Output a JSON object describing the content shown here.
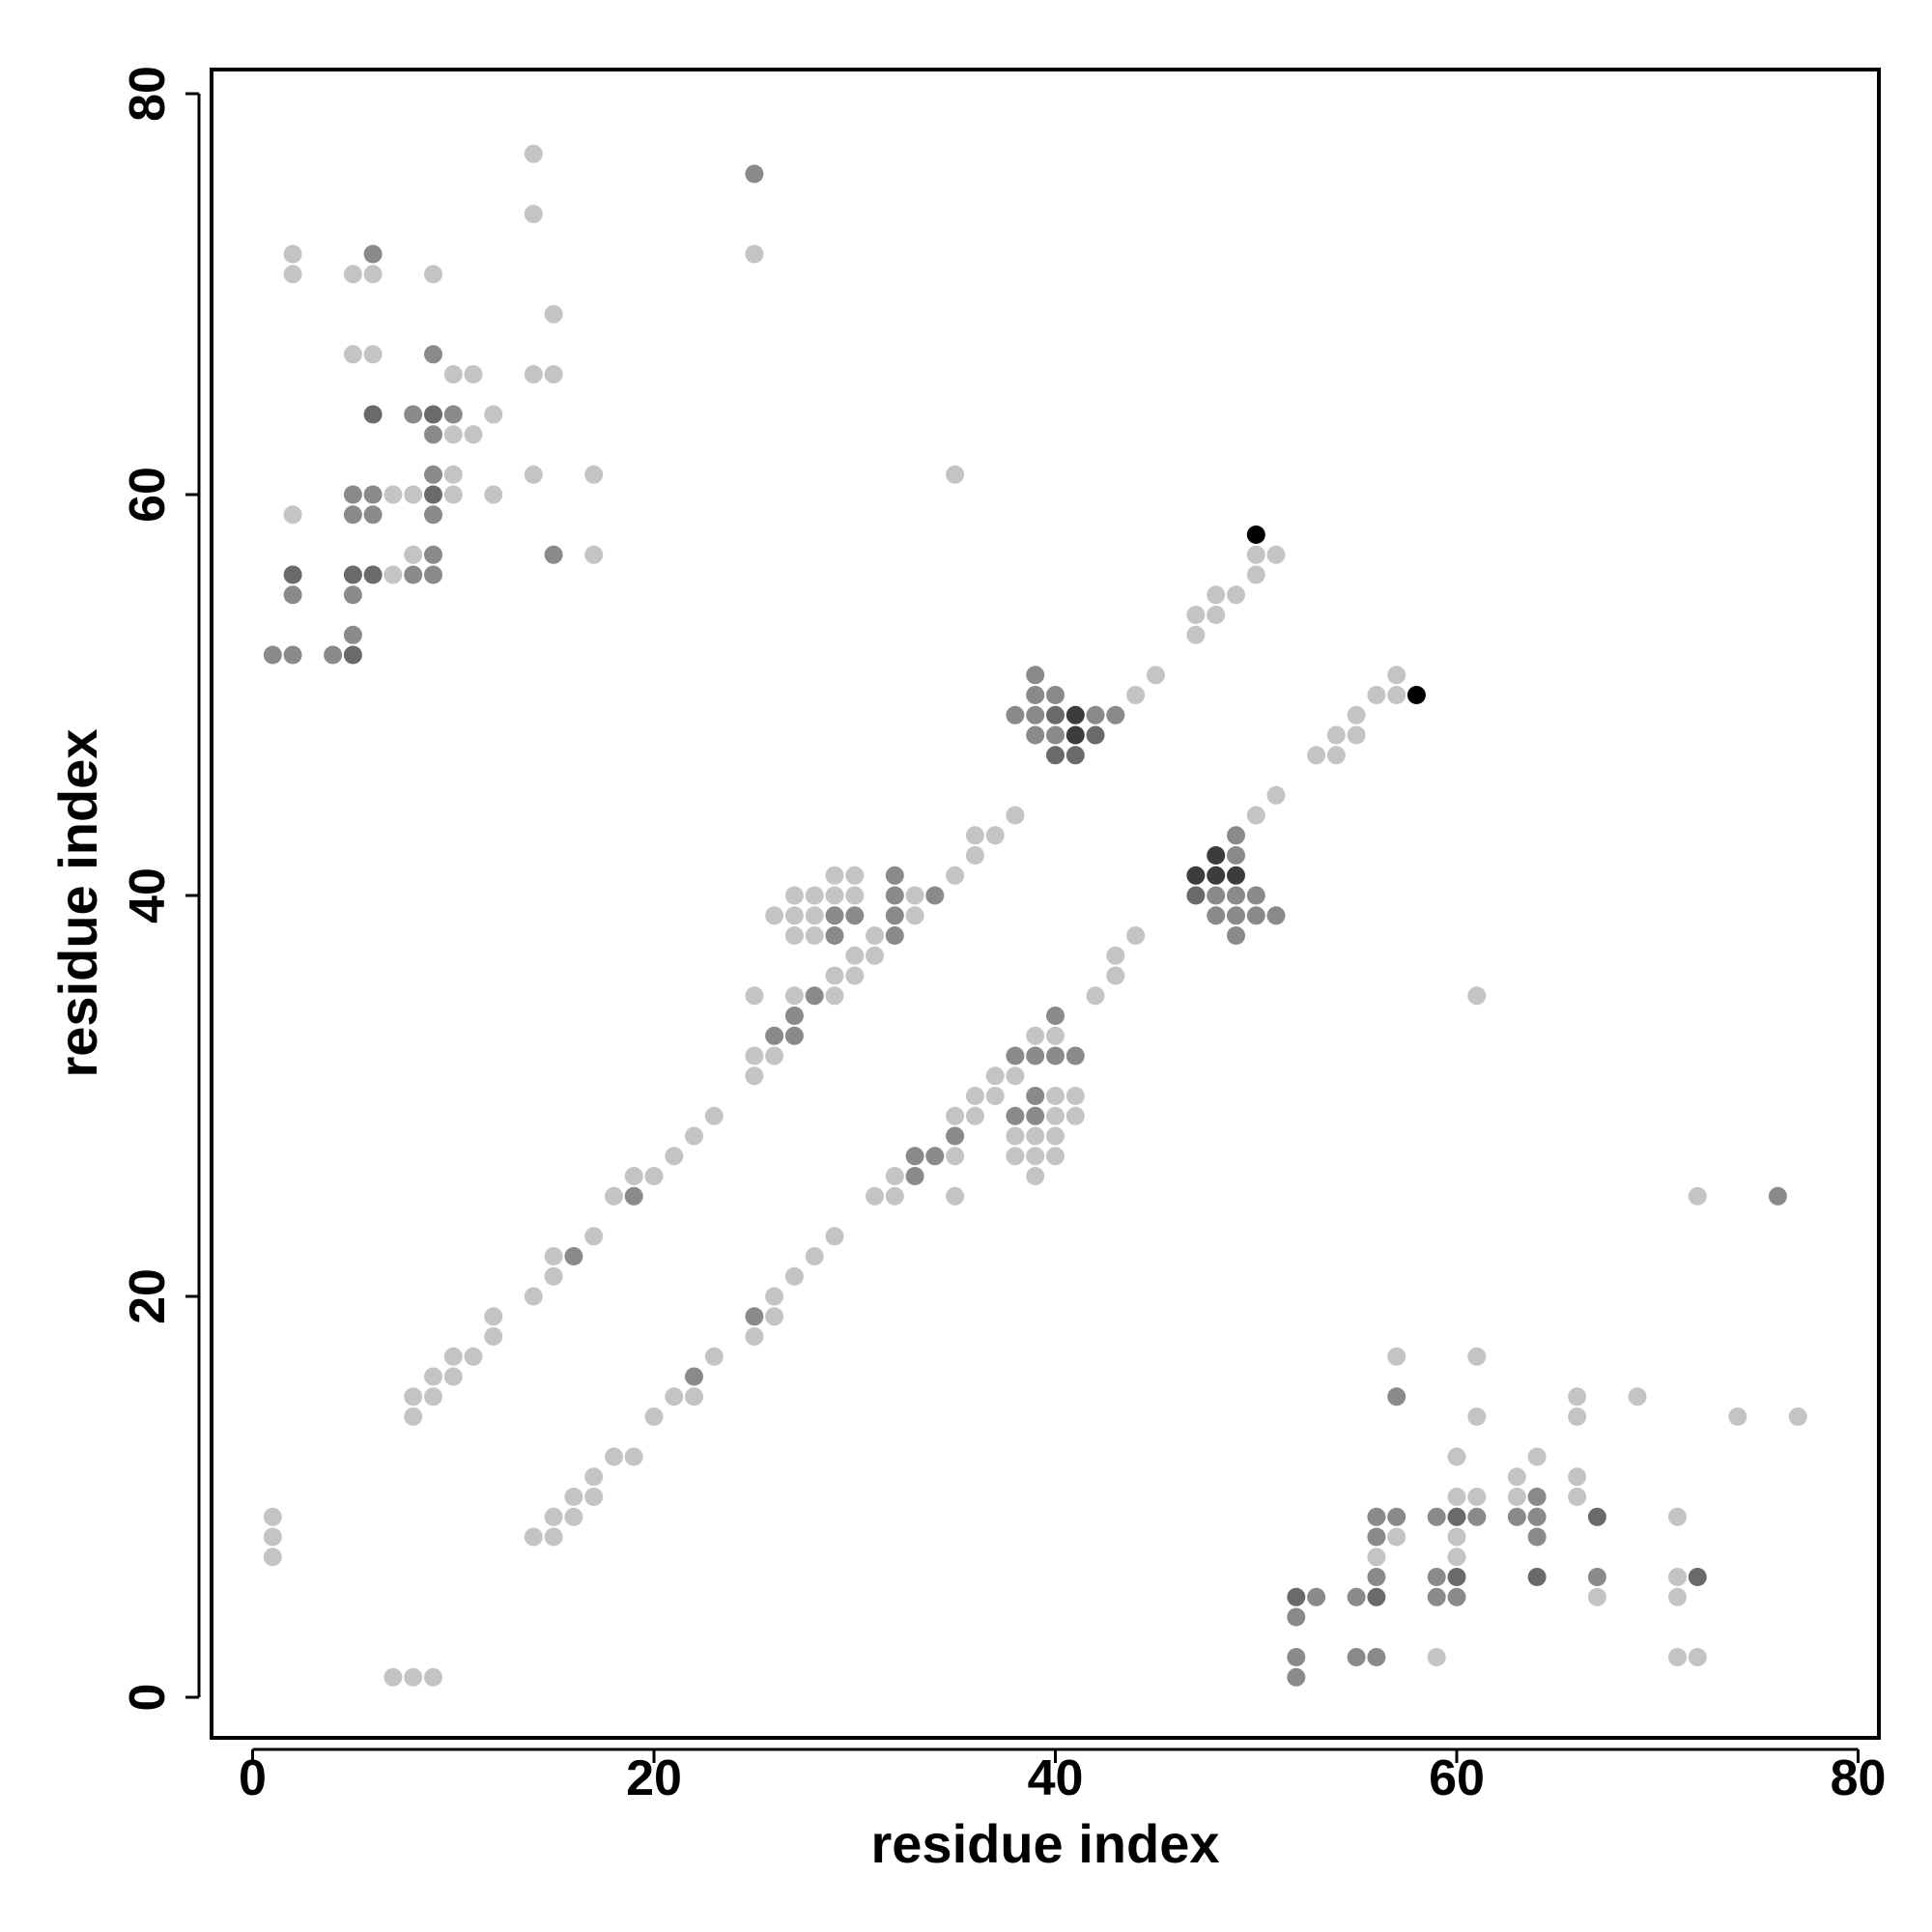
{
  "chart_data": {
    "type": "scatter",
    "xlabel": "residue index",
    "ylabel": "residue index",
    "xlim": [
      -2,
      81
    ],
    "ylim": [
      -2,
      81
    ],
    "xticks": [
      0,
      20,
      40,
      60,
      80
    ],
    "yticks": [
      0,
      20,
      40,
      60,
      80
    ],
    "grid": false,
    "legend": "none",
    "shade_levels": {
      "1": "#c4c4c4",
      "2": "#8a8a8a",
      "3": "#6a6a6a",
      "4": "#3c3c3c",
      "5": "#000000"
    },
    "points": [
      [
        1,
        52,
        2
      ],
      [
        2,
        52,
        2
      ],
      [
        4,
        52,
        2
      ],
      [
        5,
        52,
        3
      ],
      [
        5,
        53,
        2
      ],
      [
        5,
        55,
        2
      ],
      [
        5,
        56,
        3
      ],
      [
        6,
        56,
        3
      ],
      [
        2,
        55,
        2
      ],
      [
        2,
        56,
        3
      ],
      [
        2,
        59,
        1
      ],
      [
        2,
        71,
        1
      ],
      [
        2,
        72,
        1
      ],
      [
        5,
        59,
        2
      ],
      [
        5,
        60,
        2
      ],
      [
        6,
        59,
        2
      ],
      [
        6,
        60,
        2
      ],
      [
        6,
        64,
        3
      ],
      [
        5,
        67,
        1
      ],
      [
        6,
        67,
        1
      ],
      [
        5,
        71,
        1
      ],
      [
        6,
        71,
        1
      ],
      [
        6,
        72,
        2
      ],
      [
        7,
        56,
        1
      ],
      [
        7,
        60,
        1
      ],
      [
        8,
        56,
        2
      ],
      [
        8,
        57,
        1
      ],
      [
        8,
        60,
        1
      ],
      [
        8,
        64,
        2
      ],
      [
        9,
        56,
        2
      ],
      [
        9,
        57,
        2
      ],
      [
        9,
        59,
        2
      ],
      [
        9,
        60,
        3
      ],
      [
        9,
        61,
        2
      ],
      [
        9,
        63,
        2
      ],
      [
        9,
        64,
        3
      ],
      [
        9,
        67,
        2
      ],
      [
        9,
        71,
        1
      ],
      [
        10,
        60,
        1
      ],
      [
        10,
        61,
        1
      ],
      [
        10,
        63,
        1
      ],
      [
        10,
        64,
        2
      ],
      [
        10,
        66,
        1
      ],
      [
        11,
        63,
        1
      ],
      [
        11,
        66,
        1
      ],
      [
        12,
        60,
        1
      ],
      [
        12,
        64,
        1
      ],
      [
        14,
        61,
        1
      ],
      [
        14,
        66,
        1
      ],
      [
        14,
        74,
        1
      ],
      [
        14,
        77,
        1
      ],
      [
        15,
        57,
        2
      ],
      [
        15,
        66,
        1
      ],
      [
        15,
        69,
        1
      ],
      [
        17,
        57,
        1
      ],
      [
        17,
        61,
        1
      ],
      [
        25,
        72,
        1
      ],
      [
        25,
        76,
        2
      ],
      [
        35,
        61,
        1
      ],
      [
        1,
        7,
        1
      ],
      [
        1,
        8,
        1
      ],
      [
        1,
        9,
        1
      ],
      [
        7,
        1,
        1
      ],
      [
        8,
        1,
        1
      ],
      [
        9,
        1,
        1
      ],
      [
        8,
        14,
        1
      ],
      [
        8,
        15,
        1
      ],
      [
        9,
        15,
        1
      ],
      [
        9,
        16,
        1
      ],
      [
        10,
        16,
        1
      ],
      [
        10,
        17,
        1
      ],
      [
        11,
        17,
        1
      ],
      [
        12,
        18,
        1
      ],
      [
        12,
        19,
        1
      ],
      [
        14,
        20,
        1
      ],
      [
        15,
        21,
        1
      ],
      [
        15,
        22,
        1
      ],
      [
        16,
        22,
        2
      ],
      [
        17,
        23,
        1
      ],
      [
        18,
        25,
        1
      ],
      [
        19,
        25,
        2
      ],
      [
        19,
        26,
        1
      ],
      [
        20,
        26,
        1
      ],
      [
        21,
        27,
        1
      ],
      [
        22,
        28,
        1
      ],
      [
        23,
        29,
        1
      ],
      [
        25,
        31,
        1
      ],
      [
        25,
        32,
        1
      ],
      [
        25,
        35,
        1
      ],
      [
        26,
        32,
        1
      ],
      [
        26,
        33,
        2
      ],
      [
        27,
        33,
        2
      ],
      [
        27,
        34,
        2
      ],
      [
        27,
        35,
        1
      ],
      [
        28,
        35,
        2
      ],
      [
        26,
        39,
        1
      ],
      [
        27,
        38,
        1
      ],
      [
        27,
        39,
        1
      ],
      [
        27,
        40,
        1
      ],
      [
        28,
        38,
        1
      ],
      [
        28,
        39,
        1
      ],
      [
        28,
        40,
        1
      ],
      [
        29,
        35,
        1
      ],
      [
        29,
        36,
        1
      ],
      [
        29,
        38,
        2
      ],
      [
        29,
        39,
        2
      ],
      [
        29,
        40,
        1
      ],
      [
        29,
        41,
        1
      ],
      [
        30,
        36,
        1
      ],
      [
        30,
        37,
        1
      ],
      [
        30,
        39,
        2
      ],
      [
        30,
        40,
        1
      ],
      [
        30,
        41,
        1
      ],
      [
        31,
        37,
        1
      ],
      [
        31,
        38,
        1
      ],
      [
        32,
        38,
        2
      ],
      [
        32,
        39,
        2
      ],
      [
        32,
        40,
        2
      ],
      [
        32,
        41,
        2
      ],
      [
        33,
        39,
        1
      ],
      [
        33,
        40,
        1
      ],
      [
        34,
        40,
        2
      ],
      [
        35,
        41,
        1
      ],
      [
        36,
        42,
        1
      ],
      [
        36,
        43,
        1
      ],
      [
        37,
        43,
        1
      ],
      [
        38,
        44,
        1
      ],
      [
        38,
        49,
        2
      ],
      [
        39,
        48,
        2
      ],
      [
        39,
        49,
        2
      ],
      [
        39,
        50,
        2
      ],
      [
        39,
        51,
        2
      ],
      [
        40,
        47,
        3
      ],
      [
        40,
        48,
        2
      ],
      [
        40,
        49,
        3
      ],
      [
        40,
        50,
        2
      ],
      [
        41,
        47,
        3
      ],
      [
        41,
        48,
        4
      ],
      [
        41,
        49,
        4
      ],
      [
        42,
        48,
        3
      ],
      [
        42,
        49,
        2
      ],
      [
        43,
        49,
        2
      ],
      [
        44,
        50,
        1
      ],
      [
        45,
        51,
        1
      ],
      [
        47,
        53,
        1
      ],
      [
        47,
        54,
        1
      ],
      [
        48,
        54,
        1
      ],
      [
        48,
        55,
        1
      ],
      [
        49,
        55,
        1
      ],
      [
        50,
        56,
        1
      ],
      [
        50,
        57,
        1
      ],
      [
        50,
        58,
        5
      ],
      [
        51,
        57,
        1
      ],
      [
        14,
        8,
        1
      ],
      [
        15,
        8,
        1
      ],
      [
        15,
        9,
        1
      ],
      [
        16,
        9,
        1
      ],
      [
        16,
        10,
        1
      ],
      [
        17,
        10,
        1
      ],
      [
        17,
        11,
        1
      ],
      [
        18,
        12,
        1
      ],
      [
        19,
        12,
        1
      ],
      [
        20,
        14,
        1
      ],
      [
        21,
        15,
        1
      ],
      [
        22,
        15,
        1
      ],
      [
        22,
        16,
        2
      ],
      [
        23,
        17,
        1
      ],
      [
        25,
        18,
        1
      ],
      [
        25,
        19,
        2
      ],
      [
        26,
        19,
        1
      ],
      [
        26,
        20,
        1
      ],
      [
        27,
        21,
        1
      ],
      [
        28,
        22,
        1
      ],
      [
        29,
        23,
        1
      ],
      [
        31,
        25,
        1
      ],
      [
        32,
        25,
        1
      ],
      [
        32,
        26,
        1
      ],
      [
        33,
        26,
        2
      ],
      [
        33,
        27,
        2
      ],
      [
        34,
        27,
        2
      ],
      [
        35,
        25,
        1
      ],
      [
        35,
        27,
        1
      ],
      [
        35,
        28,
        2
      ],
      [
        35,
        29,
        1
      ],
      [
        36,
        29,
        1
      ],
      [
        36,
        30,
        1
      ],
      [
        37,
        30,
        1
      ],
      [
        37,
        31,
        1
      ],
      [
        38,
        31,
        1
      ],
      [
        38,
        27,
        1
      ],
      [
        38,
        28,
        1
      ],
      [
        38,
        29,
        2
      ],
      [
        38,
        32,
        2
      ],
      [
        39,
        26,
        1
      ],
      [
        39,
        27,
        1
      ],
      [
        39,
        28,
        1
      ],
      [
        39,
        29,
        2
      ],
      [
        39,
        30,
        2
      ],
      [
        39,
        32,
        2
      ],
      [
        39,
        33,
        1
      ],
      [
        40,
        27,
        1
      ],
      [
        40,
        28,
        1
      ],
      [
        40,
        29,
        1
      ],
      [
        40,
        30,
        1
      ],
      [
        40,
        32,
        2
      ],
      [
        40,
        33,
        1
      ],
      [
        40,
        34,
        2
      ],
      [
        41,
        29,
        1
      ],
      [
        41,
        30,
        1
      ],
      [
        41,
        32,
        2
      ],
      [
        42,
        35,
        1
      ],
      [
        43,
        36,
        1
      ],
      [
        43,
        37,
        1
      ],
      [
        44,
        38,
        1
      ],
      [
        47,
        40,
        3
      ],
      [
        47,
        41,
        4
      ],
      [
        48,
        39,
        2
      ],
      [
        48,
        40,
        2
      ],
      [
        48,
        41,
        4
      ],
      [
        48,
        42,
        4
      ],
      [
        49,
        38,
        2
      ],
      [
        49,
        39,
        2
      ],
      [
        49,
        40,
        2
      ],
      [
        49,
        41,
        4
      ],
      [
        49,
        42,
        2
      ],
      [
        49,
        43,
        2
      ],
      [
        50,
        39,
        2
      ],
      [
        50,
        40,
        2
      ],
      [
        50,
        44,
        1
      ],
      [
        51,
        39,
        2
      ],
      [
        51,
        45,
        1
      ],
      [
        53,
        47,
        1
      ],
      [
        54,
        47,
        1
      ],
      [
        54,
        48,
        1
      ],
      [
        55,
        48,
        1
      ],
      [
        55,
        49,
        1
      ],
      [
        56,
        50,
        1
      ],
      [
        57,
        50,
        1
      ],
      [
        57,
        51,
        1
      ],
      [
        58,
        50,
        5
      ],
      [
        61,
        35,
        1
      ],
      [
        72,
        25,
        1
      ],
      [
        76,
        25,
        2
      ],
      [
        52,
        1,
        2
      ],
      [
        52,
        2,
        2
      ],
      [
        52,
        4,
        2
      ],
      [
        52,
        5,
        3
      ],
      [
        53,
        5,
        2
      ],
      [
        55,
        2,
        2
      ],
      [
        55,
        5,
        2
      ],
      [
        56,
        2,
        2
      ],
      [
        56,
        5,
        3
      ],
      [
        56,
        6,
        2
      ],
      [
        56,
        7,
        1
      ],
      [
        56,
        8,
        2
      ],
      [
        56,
        9,
        2
      ],
      [
        57,
        8,
        1
      ],
      [
        57,
        9,
        2
      ],
      [
        57,
        15,
        2
      ],
      [
        57,
        17,
        1
      ],
      [
        59,
        2,
        1
      ],
      [
        59,
        5,
        2
      ],
      [
        59,
        6,
        2
      ],
      [
        59,
        9,
        2
      ],
      [
        60,
        5,
        2
      ],
      [
        60,
        6,
        3
      ],
      [
        60,
        7,
        1
      ],
      [
        60,
        8,
        1
      ],
      [
        60,
        9,
        3
      ],
      [
        60,
        10,
        1
      ],
      [
        60,
        12,
        1
      ],
      [
        61,
        9,
        2
      ],
      [
        61,
        10,
        1
      ],
      [
        61,
        14,
        1
      ],
      [
        61,
        17,
        1
      ],
      [
        63,
        9,
        2
      ],
      [
        63,
        10,
        1
      ],
      [
        63,
        11,
        1
      ],
      [
        64,
        6,
        3
      ],
      [
        64,
        8,
        2
      ],
      [
        64,
        9,
        2
      ],
      [
        64,
        10,
        2
      ],
      [
        64,
        12,
        1
      ],
      [
        66,
        10,
        1
      ],
      [
        66,
        11,
        1
      ],
      [
        66,
        14,
        1
      ],
      [
        66,
        15,
        1
      ],
      [
        67,
        5,
        1
      ],
      [
        67,
        6,
        2
      ],
      [
        67,
        9,
        3
      ],
      [
        69,
        15,
        1
      ],
      [
        71,
        2,
        1
      ],
      [
        71,
        5,
        1
      ],
      [
        71,
        6,
        1
      ],
      [
        71,
        9,
        1
      ],
      [
        72,
        2,
        1
      ],
      [
        72,
        6,
        3
      ],
      [
        74,
        14,
        1
      ],
      [
        77,
        14,
        1
      ]
    ]
  }
}
